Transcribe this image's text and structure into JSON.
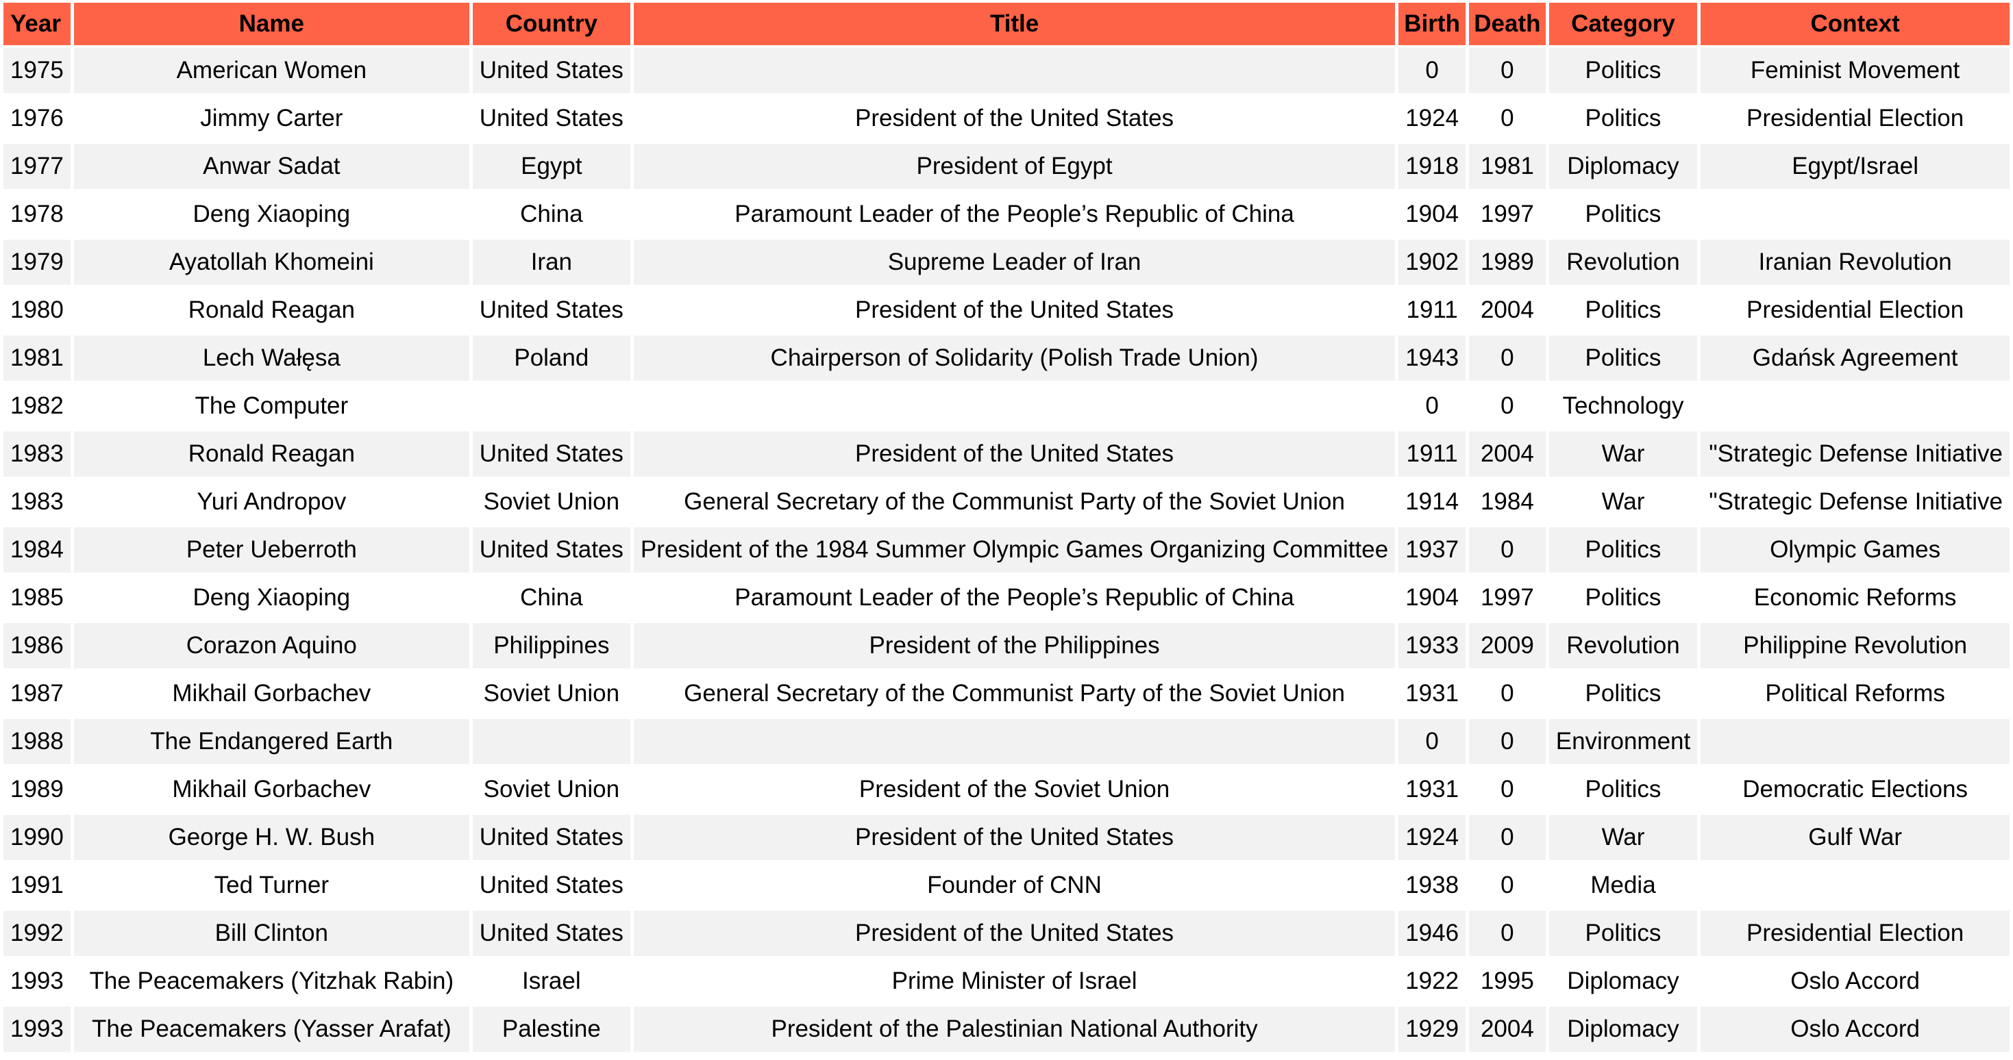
{
  "table": {
    "headers": [
      "Year",
      "Name",
      "Country",
      "Title",
      "Birth",
      "Death",
      "Category",
      "Context"
    ],
    "rows": [
      [
        "1975",
        "American Women",
        "United States",
        "",
        "0",
        "0",
        "Politics",
        "Feminist Movement"
      ],
      [
        "1976",
        "Jimmy Carter",
        "United States",
        "President of the United States",
        "1924",
        "0",
        "Politics",
        "Presidential Election"
      ],
      [
        "1977",
        "Anwar Sadat",
        "Egypt",
        "President of Egypt",
        "1918",
        "1981",
        "Diplomacy",
        "Egypt/Israel"
      ],
      [
        "1978",
        "Deng Xiaoping",
        "China",
        "Paramount Leader of the People’s Republic of China",
        "1904",
        "1997",
        "Politics",
        ""
      ],
      [
        "1979",
        "Ayatollah Khomeini",
        "Iran",
        "Supreme Leader of Iran",
        "1902",
        "1989",
        "Revolution",
        "Iranian Revolution"
      ],
      [
        "1980",
        "Ronald Reagan",
        "United States",
        "President of the United States",
        "1911",
        "2004",
        "Politics",
        "Presidential Election"
      ],
      [
        "1981",
        "Lech Wałęsa",
        "Poland",
        "Chairperson of Solidarity (Polish Trade Union)",
        "1943",
        "0",
        "Politics",
        "Gdańsk Agreement"
      ],
      [
        "1982",
        "The Computer",
        "",
        "",
        "0",
        "0",
        "Technology",
        ""
      ],
      [
        "1983",
        "Ronald Reagan",
        "United States",
        "President of the United States",
        "1911",
        "2004",
        "War",
        "\"Strategic Defense Initiative"
      ],
      [
        "1983",
        "Yuri Andropov",
        "Soviet Union",
        "General Secretary of the Communist Party of the Soviet Union",
        "1914",
        "1984",
        "War",
        "\"Strategic Defense Initiative"
      ],
      [
        "1984",
        "Peter Ueberroth",
        "United States",
        "President of the 1984 Summer Olympic Games Organizing Committee",
        "1937",
        "0",
        "Politics",
        "Olympic Games"
      ],
      [
        "1985",
        "Deng Xiaoping",
        "China",
        "Paramount Leader of the People’s Republic of China",
        "1904",
        "1997",
        "Politics",
        "Economic Reforms"
      ],
      [
        "1986",
        "Corazon Aquino",
        "Philippines",
        "President of the Philippines",
        "1933",
        "2009",
        "Revolution",
        "Philippine Revolution"
      ],
      [
        "1987",
        "Mikhail Gorbachev",
        "Soviet Union",
        "General Secretary of the Communist Party of the Soviet Union",
        "1931",
        "0",
        "Politics",
        "Political Reforms"
      ],
      [
        "1988",
        "The Endangered Earth",
        "",
        "",
        "0",
        "0",
        "Environment",
        ""
      ],
      [
        "1989",
        "Mikhail Gorbachev",
        "Soviet Union",
        "President of the Soviet Union",
        "1931",
        "0",
        "Politics",
        "Democratic Elections"
      ],
      [
        "1990",
        "George H. W. Bush",
        "United States",
        "President of the United States",
        "1924",
        "0",
        "War",
        "Gulf War"
      ],
      [
        "1991",
        "Ted Turner",
        "United States",
        "Founder of CNN",
        "1938",
        "0",
        "Media",
        ""
      ],
      [
        "1992",
        "Bill Clinton",
        "United States",
        "President of the United States",
        "1946",
        "0",
        "Politics",
        "Presidential Election"
      ],
      [
        "1993",
        "The Peacemakers (Yitzhak Rabin)",
        "Israel",
        "Prime Minister of Israel",
        "1922",
        "1995",
        "Diplomacy",
        "Oslo Accord"
      ],
      [
        "1993",
        "The Peacemakers (Yasser Arafat)",
        "Palestine",
        "President of the Palestinian National Authority",
        "1929",
        "2004",
        "Diplomacy",
        "Oslo Accord"
      ]
    ]
  },
  "colors": {
    "header_bg": "#ff6347",
    "stripe_bg": "#f2f2f2"
  }
}
